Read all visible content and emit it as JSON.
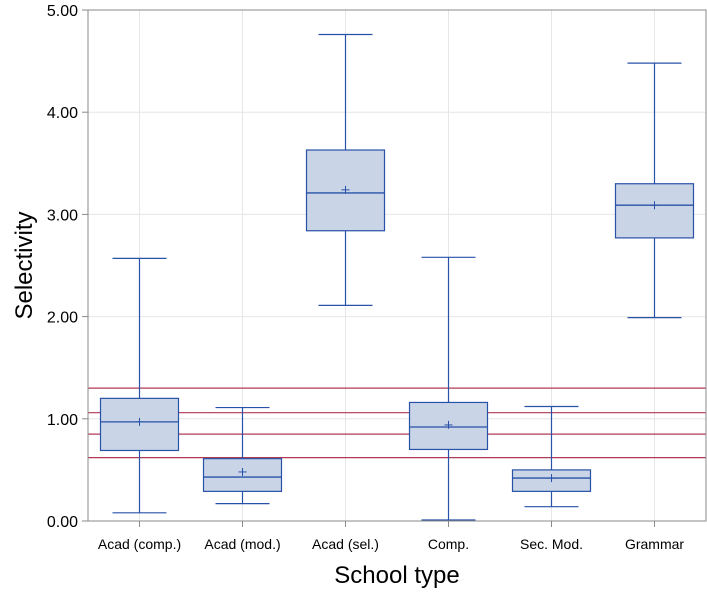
{
  "chart_data": {
    "type": "boxplot",
    "xlabel": "School type",
    "ylabel": "Selectivity",
    "ylim": [
      0,
      5
    ],
    "yticks": [
      "0.00",
      "1.00",
      "2.00",
      "3.00",
      "4.00",
      "5.00"
    ],
    "ytick_values": [
      0,
      1,
      2,
      3,
      4,
      5
    ],
    "grid": true,
    "categories": [
      "Acad (comp.)",
      "Acad (mod.)",
      "Acad (sel.)",
      "Comp.",
      "Sec. Mod.",
      "Grammar"
    ],
    "boxes": [
      {
        "category": "Acad (comp.)",
        "whisker_low": 0.08,
        "q1": 0.69,
        "median": 0.97,
        "q3": 1.2,
        "whisker_high": 2.57,
        "mean": 0.97
      },
      {
        "category": "Acad (mod.)",
        "whisker_low": 0.17,
        "q1": 0.29,
        "median": 0.43,
        "q3": 0.61,
        "whisker_high": 1.11,
        "mean": 0.48
      },
      {
        "category": "Acad (sel.)",
        "whisker_low": 2.11,
        "q1": 2.84,
        "median": 3.21,
        "q3": 3.63,
        "whisker_high": 4.76,
        "mean": 3.24
      },
      {
        "category": "Comp.",
        "whisker_low": 0.01,
        "q1": 0.7,
        "median": 0.92,
        "q3": 1.16,
        "whisker_high": 2.58,
        "mean": 0.94
      },
      {
        "category": "Sec. Mod.",
        "whisker_low": 0.14,
        "q1": 0.29,
        "median": 0.42,
        "q3": 0.5,
        "whisker_high": 1.12,
        "mean": 0.42
      },
      {
        "category": "Grammar",
        "whisker_low": 1.99,
        "q1": 2.77,
        "median": 3.09,
        "q3": 3.3,
        "whisker_high": 4.48,
        "mean": 3.09
      }
    ],
    "reference_lines": [
      0.62,
      0.85,
      1.06,
      1.3
    ],
    "colors": {
      "box_fill": "#c9d5e7",
      "box_stroke": "#2851a8",
      "reference_line": "#b03a55",
      "grid": "#e6e6e6",
      "frame": "#8a8a8a"
    }
  }
}
